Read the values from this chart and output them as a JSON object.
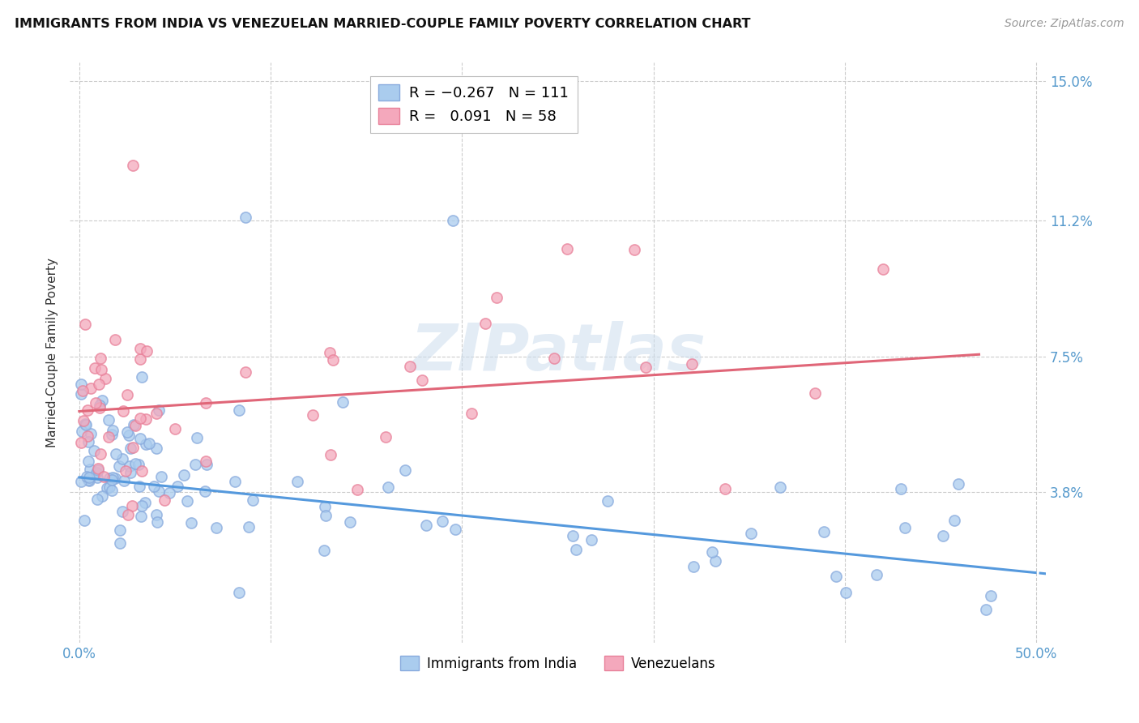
{
  "title": "IMMIGRANTS FROM INDIA VS VENEZUELAN MARRIED-COUPLE FAMILY POVERTY CORRELATION CHART",
  "source": "Source: ZipAtlas.com",
  "ylabel": "Married-Couple Family Poverty",
  "xlim": [
    -0.005,
    0.505
  ],
  "ylim": [
    -0.003,
    0.155
  ],
  "xtick_positions": [
    0.0,
    0.1,
    0.2,
    0.3,
    0.4,
    0.5
  ],
  "xticklabels": [
    "0.0%",
    "",
    "",
    "",
    "",
    "50.0%"
  ],
  "ytick_positions": [
    0.038,
    0.075,
    0.112,
    0.15
  ],
  "ytick_labels": [
    "3.8%",
    "7.5%",
    "11.2%",
    "15.0%"
  ],
  "india_color": "#aaccee",
  "venezuela_color": "#f4a8bc",
  "india_edge_color": "#88aadd",
  "venezuela_edge_color": "#e88099",
  "india_line_color": "#5599dd",
  "venezuela_line_color": "#e06678",
  "india_R": -0.267,
  "india_N": 111,
  "venezuela_R": 0.091,
  "venezuela_N": 58,
  "watermark": "ZIPatlas",
  "grid_color": "#cccccc",
  "title_color": "#111111",
  "source_color": "#999999",
  "tick_color": "#5599cc",
  "ylabel_color": "#333333"
}
